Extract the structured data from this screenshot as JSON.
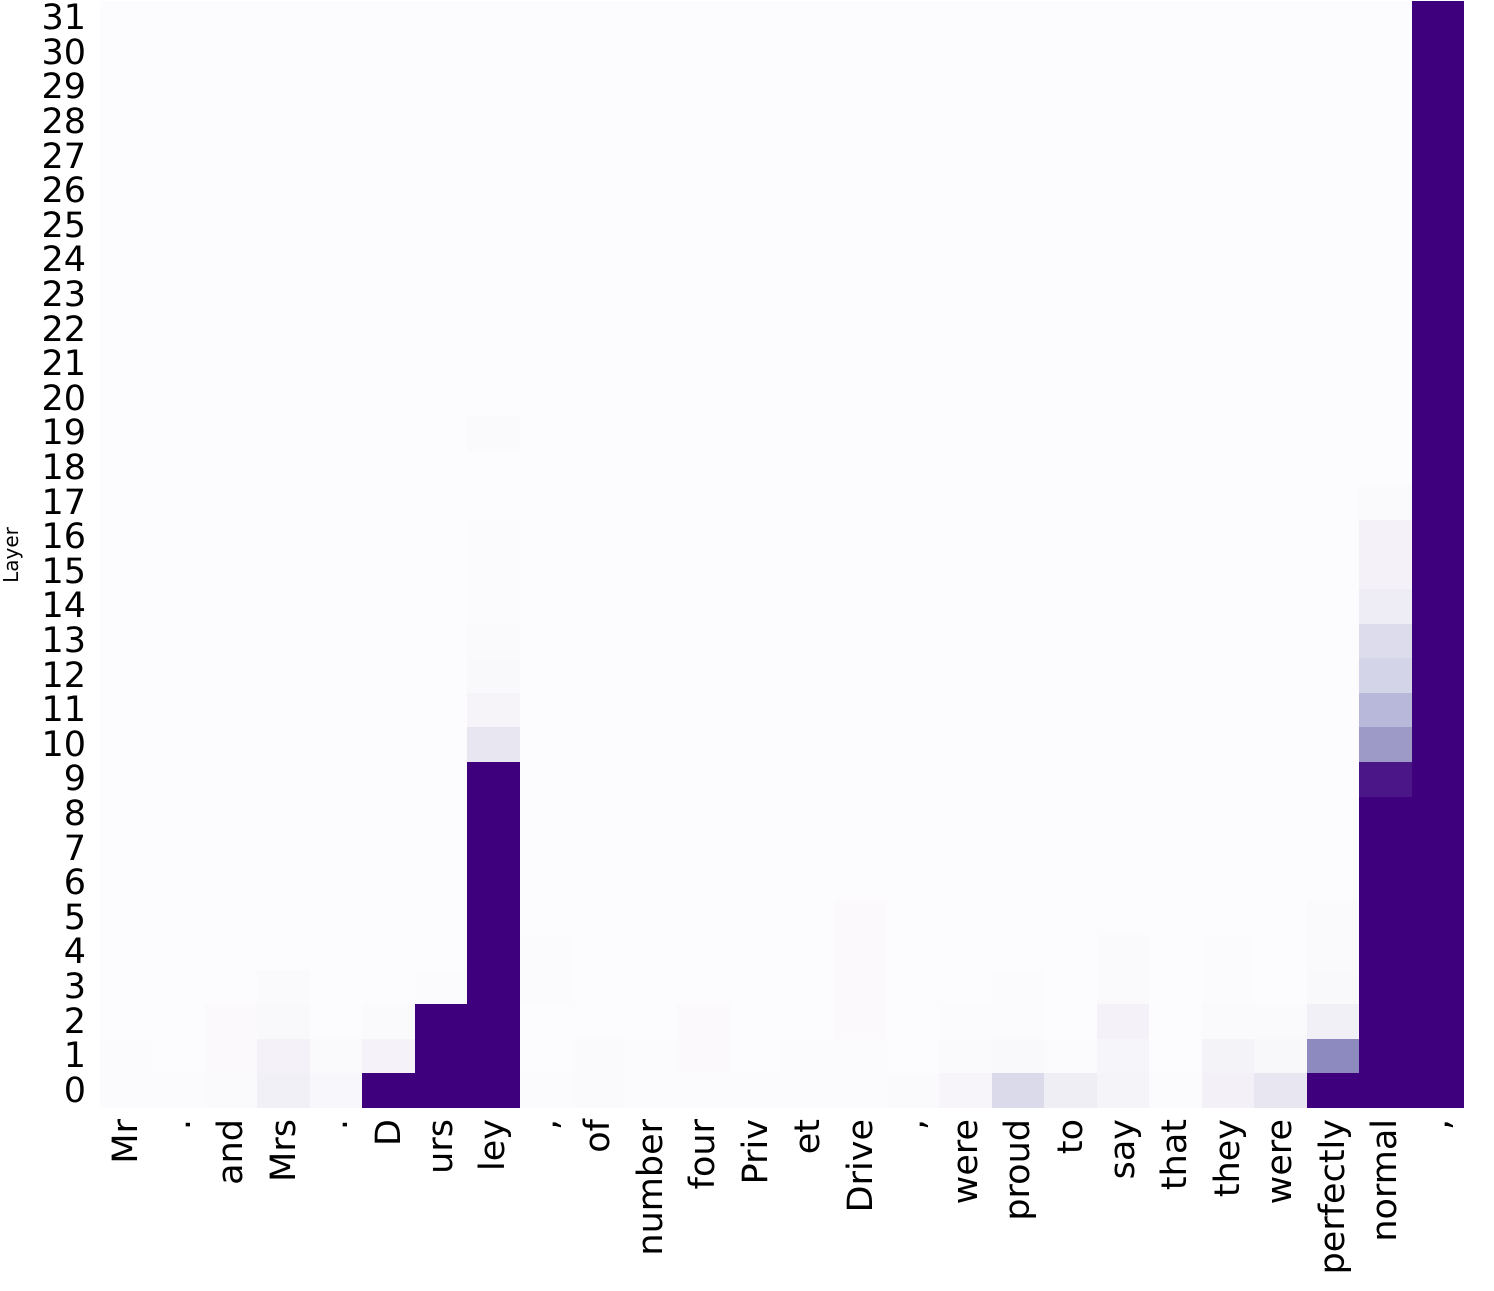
{
  "chart_data": {
    "type": "heatmap",
    "title": "",
    "xlabel": "",
    "ylabel": "Layer",
    "legend": "none",
    "grid": false,
    "colormap": "Purples",
    "colormap_anchors": [
      "#fcfbfd",
      "#efedf5",
      "#dadaeb",
      "#bcbddc",
      "#9e9ac8",
      "#807dba",
      "#6a51a3",
      "#54278f",
      "#3f007d"
    ],
    "value_range": [
      0,
      1
    ],
    "x_tokens": [
      "Mr",
      ".",
      "and",
      "Mrs",
      ".",
      "D",
      "urs",
      "ley",
      ",",
      "of",
      "number",
      "four",
      "Priv",
      "et",
      "Drive",
      ",",
      "were",
      "proud",
      "to",
      "say",
      "that",
      "they",
      "were",
      "perfectly",
      "normal",
      ","
    ],
    "y_tick_labels": [
      "0",
      "1",
      "2",
      "3",
      "4",
      "5",
      "6",
      "7",
      "8",
      "9",
      "10",
      "11",
      "12",
      "13",
      "14",
      "15",
      "16",
      "17",
      "18",
      "19",
      "20",
      "21",
      "22",
      "23",
      "24",
      "25",
      "26",
      "27",
      "28",
      "29",
      "30",
      "31"
    ],
    "y_axis_order": "layer 31 at top, layer 0 at bottom",
    "default_value": 0,
    "cells_format": [
      "token_index",
      "layer_from",
      "layer_to",
      "value"
    ],
    "cells": [
      [
        0,
        0,
        1,
        0.012
      ],
      [
        1,
        0,
        0,
        0.012
      ],
      [
        2,
        0,
        0,
        0.022
      ],
      [
        2,
        1,
        2,
        0.014
      ],
      [
        3,
        0,
        0,
        0.1
      ],
      [
        3,
        1,
        1,
        0.08
      ],
      [
        3,
        2,
        2,
        0.025
      ],
      [
        3,
        3,
        3,
        0.015
      ],
      [
        4,
        0,
        0,
        0.035
      ],
      [
        4,
        1,
        1,
        0.02
      ],
      [
        5,
        0,
        0,
        1
      ],
      [
        5,
        1,
        1,
        0.07
      ],
      [
        5,
        2,
        2,
        0.018
      ],
      [
        6,
        0,
        2,
        1
      ],
      [
        6,
        3,
        3,
        0.012
      ],
      [
        7,
        0,
        9,
        1
      ],
      [
        7,
        10,
        10,
        0.17
      ],
      [
        7,
        11,
        11,
        0.06
      ],
      [
        7,
        12,
        12,
        0.028
      ],
      [
        7,
        13,
        13,
        0.018
      ],
      [
        7,
        14,
        16,
        0.013
      ],
      [
        7,
        19,
        19,
        0.015
      ],
      [
        8,
        0,
        0,
        0.01
      ],
      [
        8,
        3,
        4,
        0.012
      ],
      [
        9,
        0,
        1,
        0.015
      ],
      [
        10,
        0,
        1,
        0.01
      ],
      [
        11,
        0,
        0,
        0.01
      ],
      [
        11,
        1,
        2,
        0.014
      ],
      [
        12,
        0,
        0,
        0.012
      ],
      [
        13,
        0,
        1,
        0.012
      ],
      [
        14,
        0,
        1,
        0.012
      ],
      [
        14,
        2,
        5,
        0.014
      ],
      [
        15,
        0,
        0,
        0.015
      ],
      [
        16,
        0,
        0,
        0.05
      ],
      [
        16,
        1,
        1,
        0.018
      ],
      [
        16,
        2,
        2,
        0.012
      ],
      [
        17,
        0,
        0,
        0.25
      ],
      [
        17,
        1,
        1,
        0.03
      ],
      [
        17,
        2,
        3,
        0.012
      ],
      [
        18,
        0,
        0,
        0.12
      ],
      [
        18,
        1,
        1,
        0.012
      ],
      [
        19,
        0,
        0,
        0.065
      ],
      [
        19,
        1,
        1,
        0.055
      ],
      [
        19,
        2,
        2,
        0.08
      ],
      [
        19,
        3,
        4,
        0.018
      ],
      [
        20,
        0,
        0,
        0.012
      ],
      [
        21,
        0,
        0,
        0.09
      ],
      [
        21,
        1,
        1,
        0.075
      ],
      [
        21,
        2,
        2,
        0.02
      ],
      [
        21,
        3,
        4,
        0.012
      ],
      [
        22,
        0,
        0,
        0.17
      ],
      [
        22,
        1,
        1,
        0.04
      ],
      [
        22,
        2,
        2,
        0.015
      ],
      [
        23,
        0,
        0,
        1
      ],
      [
        23,
        1,
        1,
        0.57
      ],
      [
        23,
        2,
        2,
        0.1
      ],
      [
        23,
        3,
        3,
        0.025
      ],
      [
        23,
        4,
        5,
        0.016
      ],
      [
        24,
        0,
        8,
        1
      ],
      [
        24,
        9,
        9,
        0.93
      ],
      [
        24,
        10,
        10,
        0.5
      ],
      [
        24,
        11,
        11,
        0.39
      ],
      [
        24,
        12,
        12,
        0.275
      ],
      [
        24,
        13,
        13,
        0.24
      ],
      [
        24,
        14,
        14,
        0.13
      ],
      [
        24,
        15,
        16,
        0.08
      ],
      [
        24,
        17,
        17,
        0.015
      ],
      [
        25,
        0,
        31,
        1
      ]
    ]
  }
}
